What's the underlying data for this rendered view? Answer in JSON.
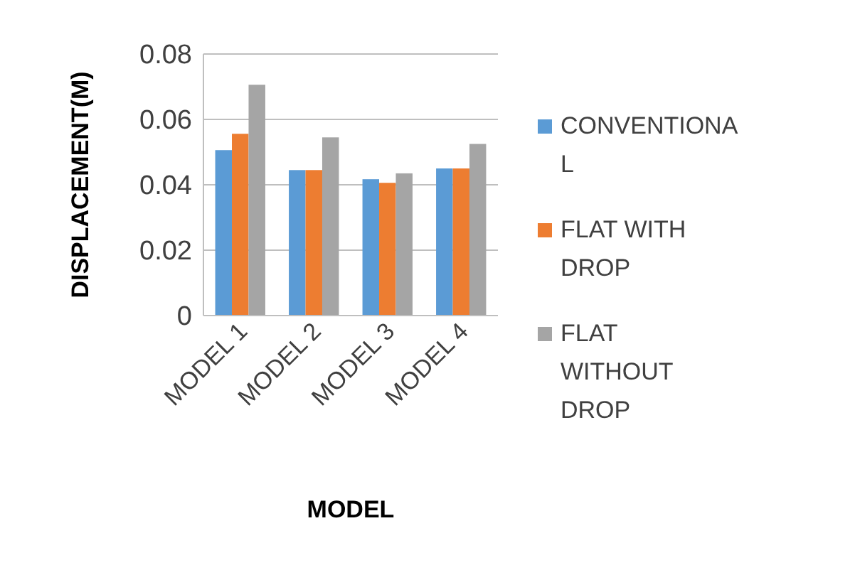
{
  "chart_data": {
    "type": "bar",
    "xlabel": "MODEL",
    "ylabel": "DISPLACEMENT(M)",
    "categories": [
      "MODEL 1",
      "MODEL 2",
      "MODEL 3",
      "MODEL 4"
    ],
    "series": [
      {
        "name": "CONVENTIONAL",
        "color": "#5b9bd5",
        "values": [
          0.0506,
          0.0445,
          0.0417,
          0.045
        ]
      },
      {
        "name": "FLAT WITH DROP",
        "color": "#ed7d31",
        "values": [
          0.0556,
          0.0445,
          0.0406,
          0.045
        ]
      },
      {
        "name": "FLAT WITHOUT DROP",
        "color": "#a5a5a5",
        "values": [
          0.0706,
          0.0545,
          0.0435,
          0.0525
        ]
      }
    ],
    "ylim": [
      0,
      0.08
    ],
    "yticks": [
      0,
      0.02,
      0.04,
      0.06,
      0.08
    ],
    "grid": "y",
    "legend": "right"
  }
}
